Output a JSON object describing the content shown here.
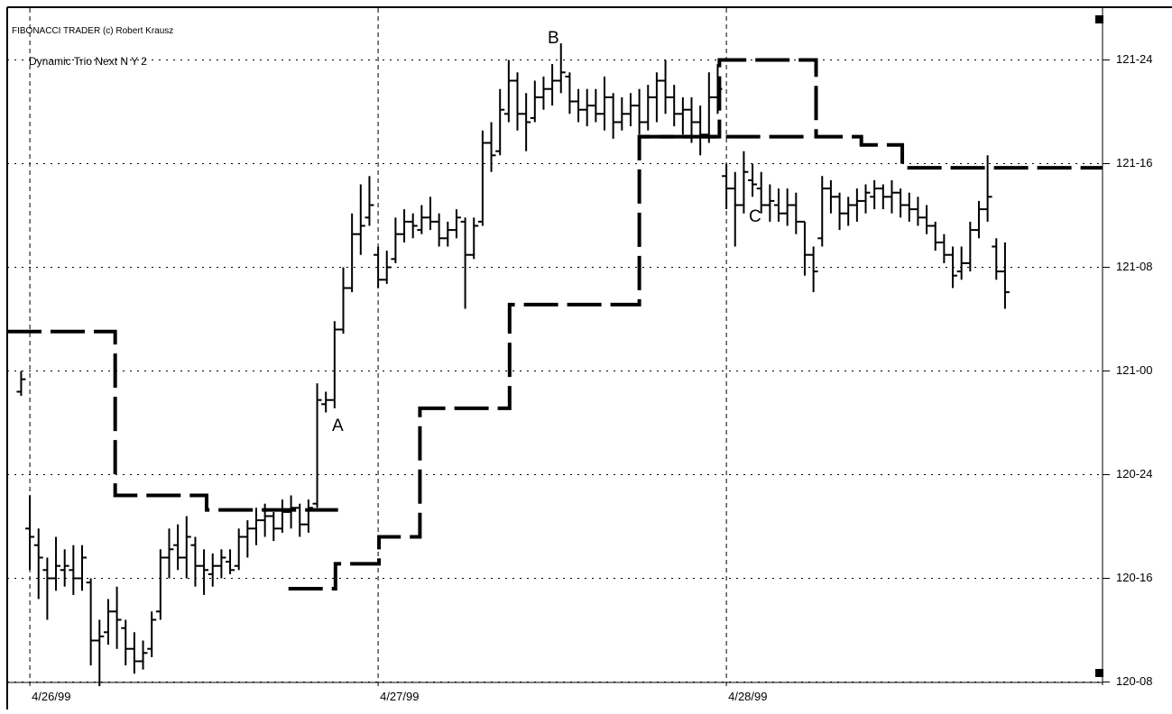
{
  "chart_data": {
    "type": "ohlc",
    "title": "FIBONACCI TRADER (c) Robert Krausz",
    "subtitle": "Dynamic Trio Next N Y 2",
    "annotations": [
      "A",
      "B",
      "C"
    ],
    "color": "#000000",
    "grid": true,
    "xlim": [
      -2.6,
      123.2
    ],
    "xticks": [
      {
        "value": 0,
        "label": "4/26/99"
      },
      {
        "value": 40,
        "label": "4/27/99"
      },
      {
        "value": 80,
        "label": "4/28/99"
      }
    ],
    "ylim": [
      120.25,
      121.875
    ],
    "yticks": [
      {
        "value": 121.75,
        "label": "121-24"
      },
      {
        "value": 121.5,
        "label": "121-16"
      },
      {
        "value": 121.25,
        "label": "121-08"
      },
      {
        "value": 121.0,
        "label": "121-00"
      },
      {
        "value": 120.75,
        "label": "120-24"
      },
      {
        "value": 120.5,
        "label": "120-16"
      },
      {
        "value": 120.25,
        "label": "120-08"
      }
    ],
    "x": [
      -1,
      0,
      1,
      2,
      3,
      4,
      5,
      6,
      7,
      8,
      9,
      10,
      11,
      12,
      13,
      14,
      15,
      16,
      17,
      18,
      19,
      20,
      21,
      22,
      23,
      24,
      25,
      26,
      27,
      28,
      29,
      30,
      31,
      32,
      33,
      34,
      35,
      36,
      37,
      38,
      39,
      40,
      41,
      42,
      43,
      44,
      45,
      46,
      47,
      48,
      49,
      50,
      51,
      52,
      53,
      54,
      55,
      56,
      57,
      58,
      59,
      60,
      61,
      62,
      63,
      64,
      65,
      66,
      67,
      68,
      69,
      70,
      71,
      72,
      73,
      74,
      75,
      76,
      77,
      78,
      79,
      80,
      81,
      82,
      83,
      84,
      85,
      86,
      87,
      88,
      89,
      90,
      91,
      92,
      93,
      94,
      95,
      96,
      97,
      98,
      99,
      100,
      101,
      102,
      103,
      104,
      105,
      106,
      107,
      108,
      109,
      110,
      111,
      112
    ],
    "open": [
      120.95,
      120.62,
      120.58,
      120.52,
      120.5,
      120.52,
      120.52,
      120.5,
      120.49,
      120.35,
      120.37,
      120.42,
      120.38,
      120.33,
      120.3,
      120.33,
      120.42,
      120.55,
      120.58,
      120.55,
      120.58,
      120.53,
      120.51,
      120.53,
      120.54,
      120.53,
      120.6,
      120.62,
      120.64,
      120.65,
      120.62,
      120.66,
      120.67,
      120.63,
      120.68,
      120.92,
      120.93,
      121.1,
      121.2,
      121.33,
      121.37,
      121.28,
      121.22,
      121.27,
      121.33,
      121.36,
      121.34,
      121.37,
      121.36,
      121.32,
      121.34,
      121.36,
      121.28,
      121.36,
      121.55,
      121.53,
      121.62,
      121.7,
      121.62,
      121.61,
      121.66,
      121.68,
      121.7,
      121.71,
      121.65,
      121.63,
      121.64,
      121.62,
      121.66,
      121.6,
      121.62,
      121.64,
      121.6,
      121.66,
      121.7,
      121.66,
      121.62,
      121.63,
      121.6,
      121.57,
      121.66,
      121.47,
      121.44,
      121.4,
      121.46,
      121.44,
      121.4,
      121.4,
      121.38,
      121.4,
      121.36,
      121.28,
      121.32,
      121.44,
      121.42,
      121.38,
      121.4,
      121.41,
      121.42,
      121.44,
      121.42,
      121.43,
      121.4,
      121.39,
      121.37,
      121.35,
      121.31,
      121.28,
      121.24,
      121.26,
      121.34,
      121.39,
      121.3,
      121.24
    ],
    "high": [
      121.0,
      120.7,
      120.62,
      120.55,
      120.6,
      120.57,
      120.58,
      120.58,
      120.5,
      120.4,
      120.45,
      120.48,
      120.4,
      120.37,
      120.35,
      120.42,
      120.57,
      120.62,
      120.63,
      120.65,
      120.6,
      120.57,
      120.56,
      120.57,
      120.57,
      120.62,
      120.64,
      120.67,
      120.68,
      120.66,
      120.69,
      120.7,
      120.68,
      120.69,
      120.97,
      120.95,
      121.12,
      121.25,
      121.38,
      121.45,
      121.47,
      121.3,
      121.29,
      121.37,
      121.39,
      121.38,
      121.4,
      121.42,
      121.38,
      121.36,
      121.39,
      121.37,
      121.37,
      121.58,
      121.6,
      121.68,
      121.75,
      121.72,
      121.67,
      121.7,
      121.71,
      121.74,
      121.79,
      121.72,
      121.68,
      121.68,
      121.68,
      121.71,
      121.67,
      121.66,
      121.67,
      121.68,
      121.69,
      121.72,
      121.75,
      121.69,
      121.66,
      121.66,
      121.64,
      121.72,
      121.74,
      121.5,
      121.48,
      121.53,
      121.5,
      121.48,
      121.45,
      121.44,
      121.44,
      121.43,
      121.36,
      121.3,
      121.47,
      121.46,
      121.43,
      121.42,
      121.44,
      121.45,
      121.46,
      121.45,
      121.46,
      121.44,
      121.43,
      121.42,
      121.4,
      121.36,
      121.33,
      121.3,
      121.3,
      121.36,
      121.41,
      121.52,
      121.32,
      121.31
    ],
    "low": [
      120.94,
      120.52,
      120.45,
      120.4,
      120.47,
      120.48,
      120.46,
      120.47,
      120.29,
      120.24,
      120.34,
      120.33,
      120.29,
      120.27,
      120.28,
      120.31,
      120.4,
      120.5,
      120.52,
      120.5,
      120.48,
      120.46,
      120.48,
      120.5,
      120.51,
      120.52,
      120.55,
      120.58,
      120.6,
      120.59,
      120.61,
      120.62,
      120.6,
      120.61,
      120.67,
      120.9,
      120.91,
      121.09,
      121.19,
      121.28,
      121.35,
      121.2,
      121.21,
      121.26,
      121.31,
      121.32,
      121.33,
      121.34,
      121.3,
      121.3,
      121.32,
      121.15,
      121.27,
      121.35,
      121.48,
      121.52,
      121.6,
      121.58,
      121.53,
      121.6,
      121.63,
      121.64,
      121.67,
      121.62,
      121.6,
      121.59,
      121.6,
      121.58,
      121.56,
      121.58,
      121.59,
      121.57,
      121.58,
      121.6,
      121.62,
      121.59,
      121.57,
      121.55,
      121.52,
      121.55,
      121.62,
      121.39,
      121.3,
      121.38,
      121.42,
      121.38,
      121.36,
      121.36,
      121.35,
      121.33,
      121.23,
      121.19,
      121.3,
      121.38,
      121.34,
      121.35,
      121.36,
      121.38,
      121.39,
      121.39,
      121.38,
      121.37,
      121.36,
      121.35,
      121.33,
      121.29,
      121.26,
      121.2,
      121.22,
      121.24,
      121.32,
      121.36,
      121.22,
      121.15
    ],
    "close": [
      120.98,
      120.6,
      120.55,
      120.5,
      120.53,
      120.53,
      120.5,
      120.55,
      120.35,
      120.36,
      120.42,
      120.4,
      120.33,
      120.3,
      120.32,
      120.4,
      120.55,
      120.57,
      120.55,
      120.6,
      120.53,
      120.52,
      120.53,
      120.55,
      120.52,
      120.6,
      120.62,
      120.64,
      120.65,
      120.62,
      120.66,
      120.67,
      120.63,
      120.67,
      120.93,
      120.93,
      121.1,
      121.2,
      121.33,
      121.35,
      121.4,
      121.22,
      121.25,
      121.33,
      121.36,
      121.35,
      121.37,
      121.36,
      121.32,
      121.34,
      121.37,
      121.28,
      121.35,
      121.55,
      121.52,
      121.63,
      121.7,
      121.62,
      121.6,
      121.66,
      121.68,
      121.7,
      121.72,
      121.65,
      121.63,
      121.64,
      121.62,
      121.66,
      121.6,
      121.62,
      121.64,
      121.6,
      121.66,
      121.7,
      121.66,
      121.62,
      121.63,
      121.6,
      121.57,
      121.66,
      121.68,
      121.44,
      121.4,
      121.48,
      121.45,
      121.4,
      121.41,
      121.38,
      121.4,
      121.36,
      121.28,
      121.24,
      121.44,
      121.42,
      121.38,
      121.4,
      121.41,
      121.43,
      121.44,
      121.42,
      121.43,
      121.4,
      121.39,
      121.37,
      121.35,
      121.31,
      121.28,
      121.23,
      121.26,
      121.34,
      121.39,
      121.42,
      121.24,
      121.19
    ],
    "lines": [
      {
        "color": "#000000",
        "x": [
          -2.6,
          9.8,
          20.3,
          35.4,
          36,
          70,
          89.4
        ],
        "values": [
          121.095,
          120.7,
          120.665,
          120.665,
          null,
          121.565,
          121.565
        ]
      },
      {
        "color": "#000000",
        "x": [
          29.7,
          35.1,
          40.1,
          44.8,
          55.1,
          70,
          79.2,
          90.3,
          95.5,
          100.2,
          123.2
        ],
        "values": [
          120.475,
          120.535,
          120.6,
          120.91,
          121.16,
          121.565,
          121.75,
          121.565,
          121.545,
          121.49,
          121.49
        ]
      }
    ]
  }
}
